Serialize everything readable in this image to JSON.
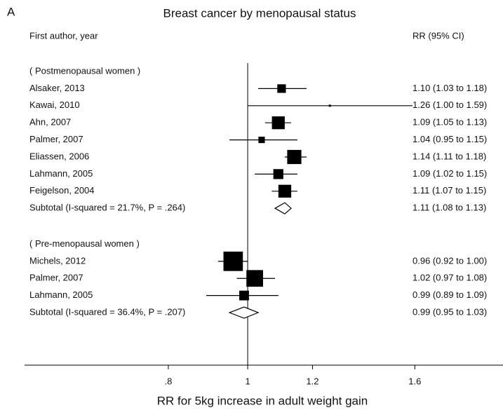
{
  "chart_data": {
    "type": "forest",
    "panel_label": "A",
    "title": "Breast cancer by menopausal status",
    "column_headers": [
      "First author, year",
      "RR (95% CI)"
    ],
    "x_label": "RR for 5kg increase in adult weight gain",
    "xscale": "log",
    "xlim": [
      0.534,
      2.05
    ],
    "xticks": [
      {
        "value": 0.8,
        "label": ".8"
      },
      1,
      1.2,
      1.6
    ],
    "reference_line": 1,
    "color": "#000000",
    "groups": [
      {
        "label": "( Postmenopausal women )",
        "studies": [
          {
            "name": "Alsaker, 2013",
            "rr": 1.1,
            "lower": 1.03,
            "upper": 1.18,
            "weight": 9.8,
            "ci_label": "1.10 (1.03 to 1.18)"
          },
          {
            "name": "Kawai, 2010",
            "rr": 1.26,
            "lower": 1.0,
            "upper": 1.59,
            "weight": 0.6,
            "ci_label": "1.26 (1.00 to 1.59)"
          },
          {
            "name": "Ahn, 2007",
            "rr": 1.09,
            "lower": 1.05,
            "upper": 1.13,
            "weight": 22,
            "ci_label": "1.09 (1.05 to 1.13)"
          },
          {
            "name": "Palmer, 2007",
            "rr": 1.04,
            "lower": 0.95,
            "upper": 1.15,
            "weight": 5.5,
            "ci_label": "1.04 (0.95 to 1.15)"
          },
          {
            "name": "Eliassen, 2006",
            "rr": 1.14,
            "lower": 1.11,
            "upper": 1.18,
            "weight": 26.8,
            "ci_label": "1.14 (1.11 to 1.18)"
          },
          {
            "name": "Lahmann, 2005",
            "rr": 1.09,
            "lower": 1.02,
            "upper": 1.15,
            "weight": 13.3,
            "ci_label": "1.09 (1.02 to 1.15)"
          },
          {
            "name": "Feigelson, 2004",
            "rr": 1.11,
            "lower": 1.07,
            "upper": 1.15,
            "weight": 22,
            "ci_label": "1.11 (1.07 to 1.15)"
          }
        ],
        "subtotal": {
          "label": "Subtotal  (I-squared = 21.7%, P = .264)",
          "rr": 1.11,
          "lower": 1.08,
          "upper": 1.13,
          "ci_label": "1.11 (1.08 to 1.13)"
        }
      },
      {
        "label": "( Pre-menopausal women )",
        "studies": [
          {
            "name": "Michels, 2012",
            "rr": 0.96,
            "lower": 0.92,
            "upper": 1.0,
            "weight": 50.4,
            "ci_label": "0.96 (0.92 to 1.00)"
          },
          {
            "name": "Palmer, 2007",
            "rr": 1.02,
            "lower": 0.97,
            "upper": 1.08,
            "weight": 37,
            "ci_label": "1.02 (0.97 to 1.08)"
          },
          {
            "name": "Lahmann, 2005",
            "rr": 0.99,
            "lower": 0.89,
            "upper": 1.09,
            "weight": 12.6,
            "ci_label": "0.99 (0.89 to 1.09)"
          }
        ],
        "subtotal": {
          "label": "Subtotal  (I-squared = 36.4%, P = .207)",
          "rr": 0.99,
          "lower": 0.95,
          "upper": 1.03,
          "ci_label": "0.99 (0.95 to 1.03)"
        }
      }
    ]
  }
}
